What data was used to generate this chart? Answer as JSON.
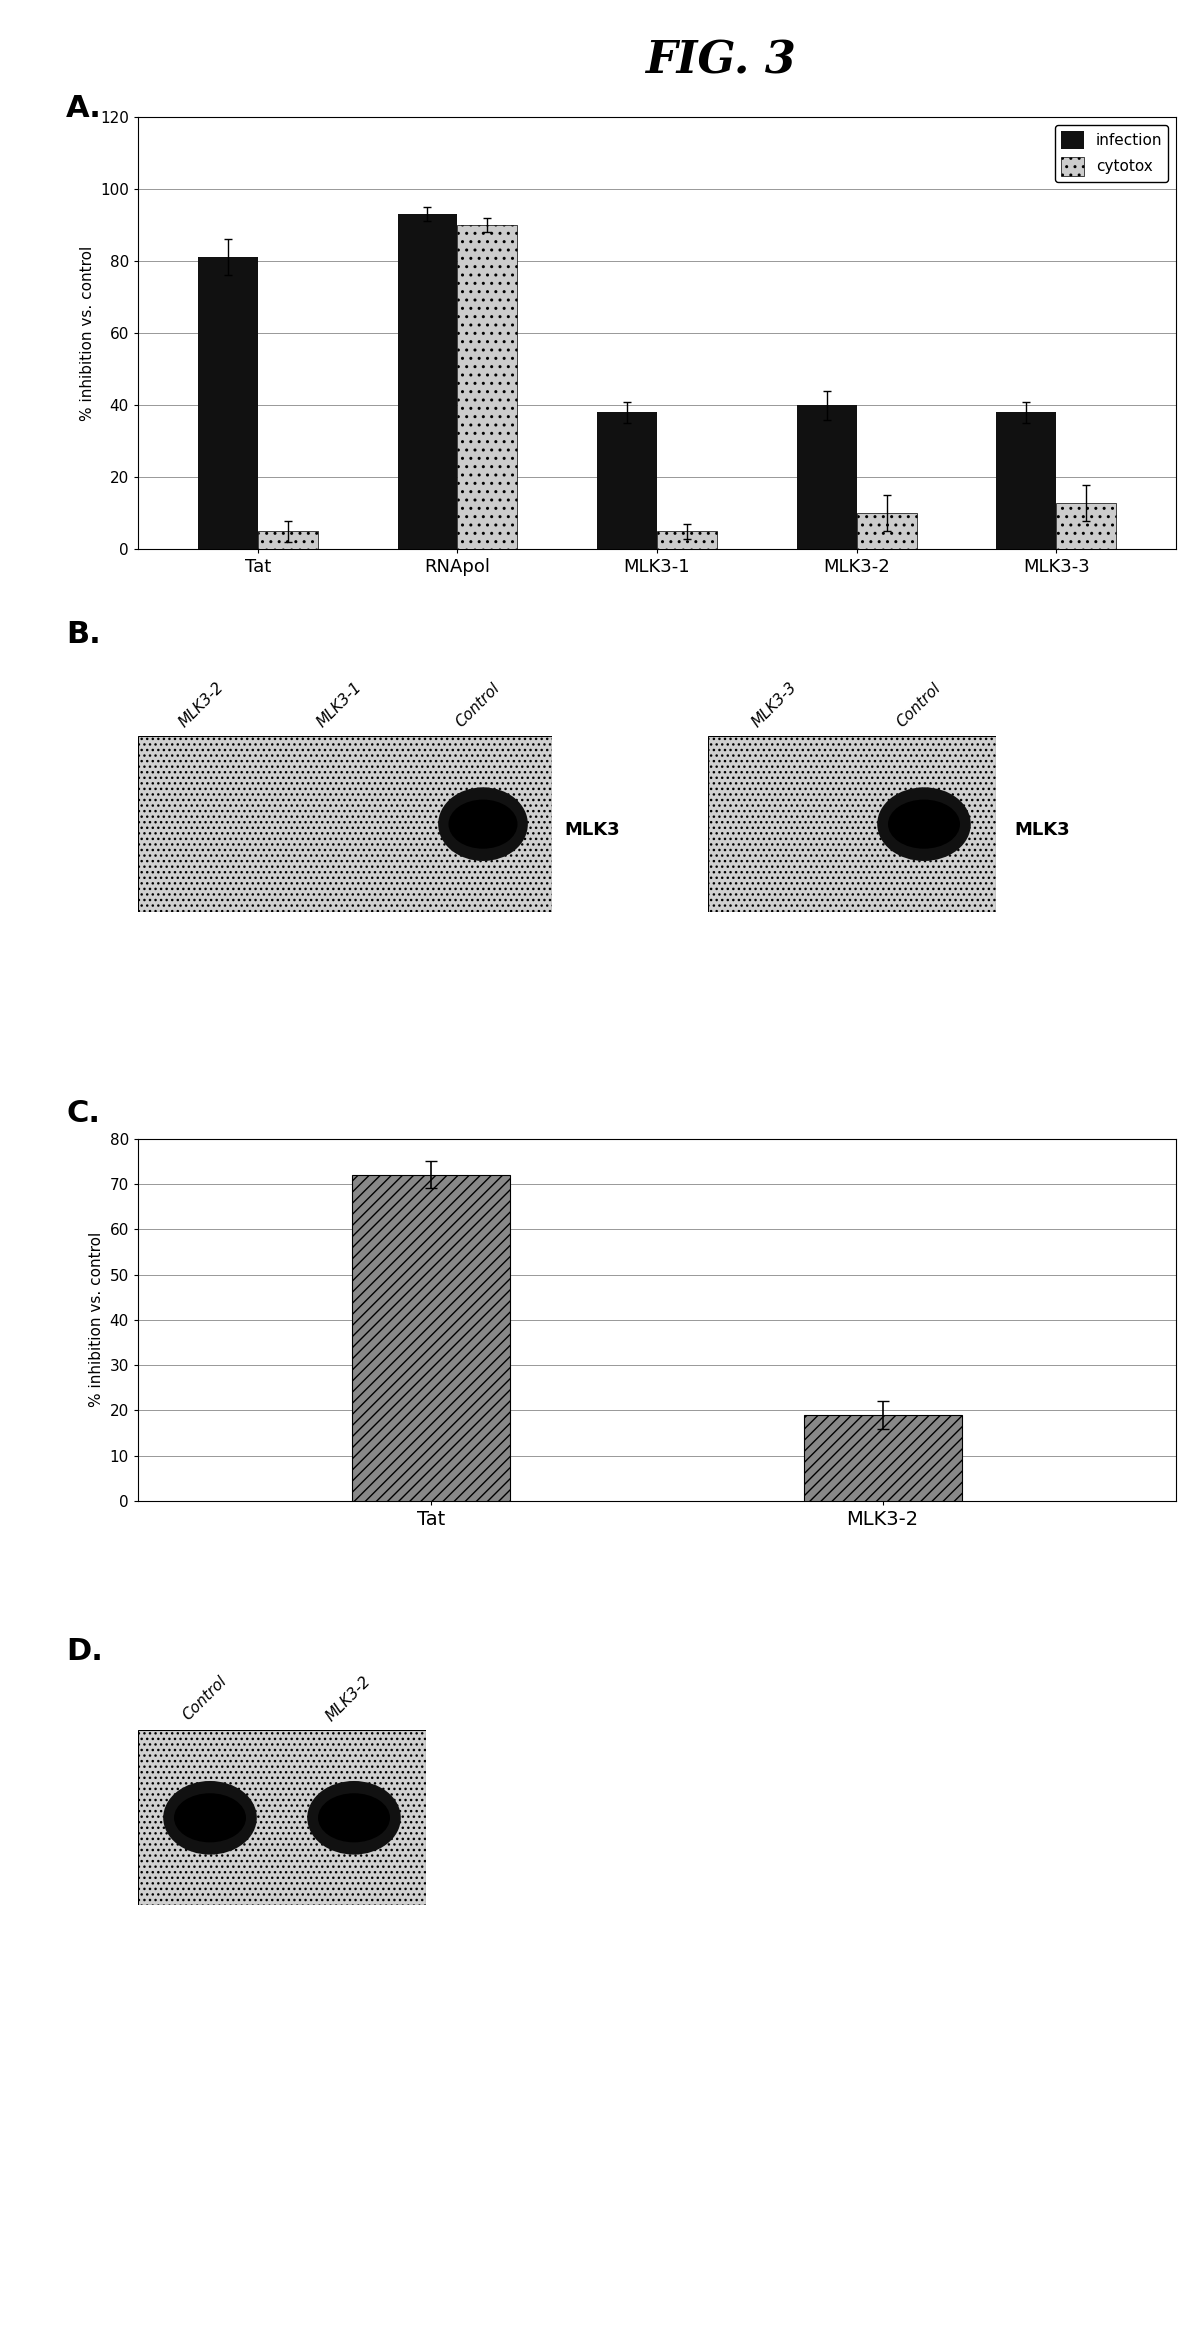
{
  "fig_title": "FIG. 3",
  "panel_A": {
    "categories": [
      "Tat",
      "RNApol",
      "MLK3-1",
      "MLK3-2",
      "MLK3-3"
    ],
    "infection": [
      81,
      93,
      38,
      40,
      38
    ],
    "cytotox": [
      5,
      90,
      5,
      10,
      13
    ],
    "infection_err": [
      5,
      2,
      3,
      4,
      3
    ],
    "cytotox_err": [
      3,
      2,
      2,
      5,
      5
    ],
    "ylabel": "% inhibition vs. control",
    "ylim": [
      0,
      120
    ],
    "yticks": [
      0,
      20,
      40,
      60,
      80,
      100,
      120
    ],
    "infection_color": "#111111",
    "cytotox_color": "#cccccc",
    "cytotox_hatch": ".."
  },
  "panel_C": {
    "categories": [
      "Tat",
      "MLK3-2"
    ],
    "values": [
      72,
      19
    ],
    "errors": [
      3,
      3
    ],
    "ylabel": "% inhibition vs. control",
    "ylim": [
      0,
      80
    ],
    "yticks": [
      0,
      10,
      20,
      30,
      40,
      50,
      60,
      70,
      80
    ],
    "bar_color": "#888888",
    "bar_hatch": "///"
  },
  "bg_color": "#ffffff",
  "text_color": "#000000"
}
